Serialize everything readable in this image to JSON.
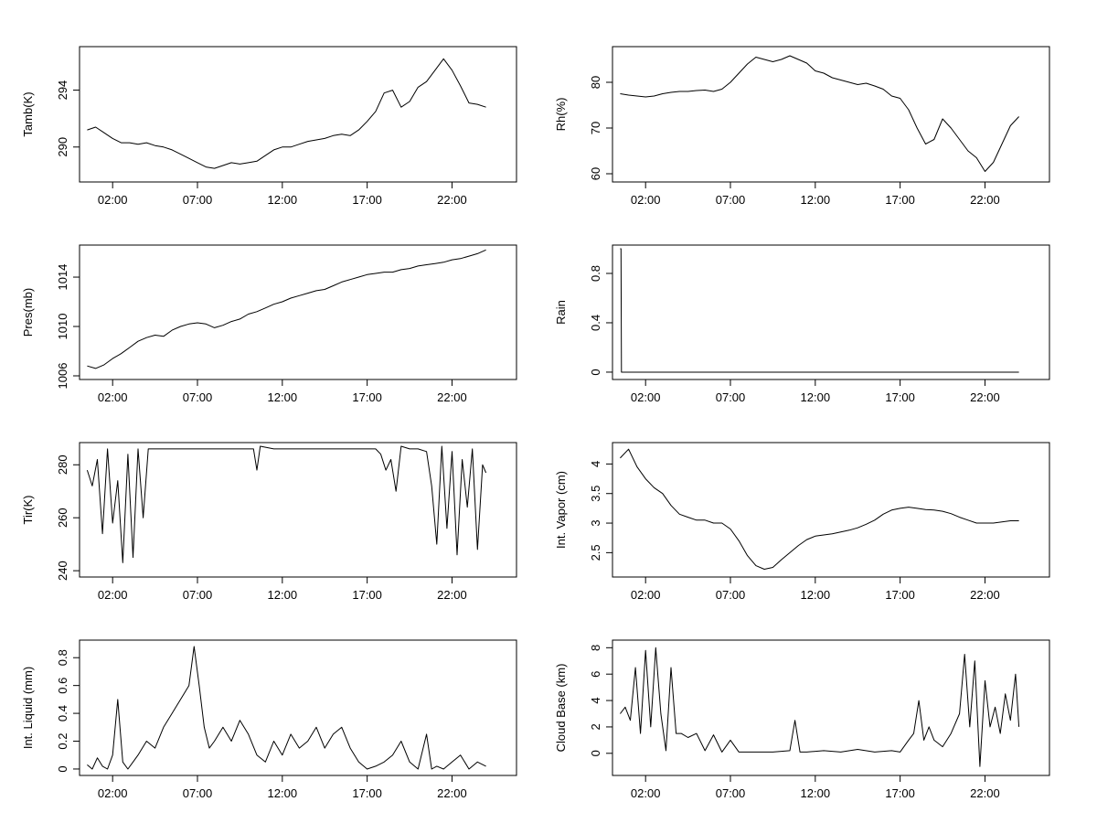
{
  "chart_data": [
    {
      "type": "line",
      "ylabel": "Tamb(K)",
      "ylim": [
        287.8,
        296.8
      ],
      "y_ticks": [
        290,
        294
      ],
      "x_ticks": [
        "02:00",
        "07:00",
        "12:00",
        "17:00",
        "22:00"
      ],
      "series": [
        {
          "x": [
            0,
            0.5,
            1,
            1.5,
            2,
            2.5,
            3,
            3.5,
            4,
            4.5,
            5,
            5.5,
            6,
            6.5,
            7,
            7.5,
            8,
            8.5,
            9,
            9.5,
            10,
            10.5,
            11,
            11.5,
            12,
            12.5,
            13,
            13.5,
            14,
            14.5,
            15,
            15.5,
            16,
            16.5,
            17,
            17.5,
            18,
            18.5,
            19,
            19.5,
            20,
            20.5,
            21,
            21.5,
            22,
            22.5,
            23,
            23.5
          ],
          "y": [
            291.2,
            291.4,
            291.0,
            290.6,
            290.3,
            290.3,
            290.2,
            290.3,
            290.1,
            290.0,
            289.8,
            289.5,
            289.2,
            288.9,
            288.6,
            288.5,
            288.7,
            288.9,
            288.8,
            288.9,
            289.0,
            289.4,
            289.8,
            290.0,
            290.0,
            290.2,
            290.4,
            290.5,
            290.6,
            290.8,
            290.9,
            290.8,
            291.2,
            291.8,
            292.5,
            293.8,
            294.0,
            292.8,
            293.2,
            294.2,
            294.6,
            295.4,
            296.2,
            295.4,
            294.3,
            293.1,
            293.0,
            292.8
          ]
        }
      ]
    },
    {
      "type": "line",
      "ylabel": "Rh(%)",
      "ylim": [
        59,
        87
      ],
      "y_ticks": [
        60,
        70,
        80
      ],
      "x_ticks": [
        "02:00",
        "07:00",
        "12:00",
        "17:00",
        "22:00"
      ],
      "series": [
        {
          "x": [
            0,
            0.5,
            1,
            1.5,
            2,
            2.5,
            3,
            3.5,
            4,
            4.5,
            5,
            5.5,
            6,
            6.5,
            7,
            7.5,
            8,
            8.5,
            9,
            9.5,
            10,
            10.5,
            11,
            11.5,
            12,
            12.5,
            13,
            13.5,
            14,
            14.5,
            15,
            15.5,
            16,
            16.5,
            17,
            17.5,
            18,
            18.5,
            19,
            19.5,
            20,
            20.5,
            21,
            21.5,
            22,
            22.5,
            23,
            23.5
          ],
          "y": [
            77.5,
            77.2,
            77.0,
            76.8,
            77.0,
            77.5,
            77.8,
            78.0,
            78.0,
            78.2,
            78.3,
            78.0,
            78.5,
            80.0,
            82.0,
            84.0,
            85.5,
            85.0,
            84.5,
            85.0,
            85.8,
            85.0,
            84.2,
            82.5,
            82.0,
            81.0,
            80.5,
            80.0,
            79.5,
            79.8,
            79.2,
            78.5,
            77.0,
            76.5,
            74.0,
            70.0,
            66.5,
            67.5,
            72.0,
            70.0,
            67.5,
            65.0,
            63.5,
            60.5,
            62.5,
            66.5,
            70.5,
            72.5
          ]
        }
      ]
    },
    {
      "type": "line",
      "ylabel": "Pres(mb)",
      "ylim": [
        1006,
        1016.3
      ],
      "y_ticks": [
        1006,
        1010,
        1014
      ],
      "x_ticks": [
        "02:00",
        "07:00",
        "12:00",
        "17:00",
        "22:00"
      ],
      "series": [
        {
          "x": [
            0,
            0.5,
            1,
            1.5,
            2,
            2.5,
            3,
            3.5,
            4,
            4.5,
            5,
            5.5,
            6,
            6.5,
            7,
            7.5,
            8,
            8.5,
            9,
            9.5,
            10,
            10.5,
            11,
            11.5,
            12,
            12.5,
            13,
            13.5,
            14,
            14.5,
            15,
            15.5,
            16,
            16.5,
            17,
            17.5,
            18,
            18.5,
            19,
            19.5,
            20,
            20.5,
            21,
            21.5,
            22,
            22.5,
            23,
            23.5
          ],
          "y": [
            1006.8,
            1006.6,
            1006.9,
            1007.4,
            1007.8,
            1008.3,
            1008.8,
            1009.1,
            1009.3,
            1009.2,
            1009.7,
            1010.0,
            1010.2,
            1010.3,
            1010.2,
            1009.9,
            1010.1,
            1010.4,
            1010.6,
            1011.0,
            1011.2,
            1011.5,
            1011.8,
            1012.0,
            1012.3,
            1012.5,
            1012.7,
            1012.9,
            1013.0,
            1013.3,
            1013.6,
            1013.8,
            1014.0,
            1014.2,
            1014.3,
            1014.4,
            1014.4,
            1014.6,
            1014.7,
            1014.9,
            1015.0,
            1015.1,
            1015.2,
            1015.4,
            1015.5,
            1015.7,
            1015.9,
            1016.2
          ]
        }
      ]
    },
    {
      "type": "line",
      "ylabel": "Rain",
      "ylim": [
        -0.03,
        1.0
      ],
      "y_ticks": [
        0.0,
        0.4,
        0.8
      ],
      "x_ticks": [
        "02:00",
        "07:00",
        "12:00",
        "17:00",
        "22:00"
      ],
      "series": [
        {
          "x": [
            0,
            0.05,
            0.08,
            23.5
          ],
          "y": [
            1.0,
            1.0,
            0.0,
            0.0
          ]
        }
      ]
    },
    {
      "type": "line",
      "ylabel": "Tir(K)",
      "ylim": [
        239,
        287
      ],
      "y_ticks": [
        240,
        260,
        280
      ],
      "x_ticks": [
        "02:00",
        "07:00",
        "12:00",
        "17:00",
        "22:00"
      ],
      "series": [
        {
          "x": [
            0,
            0.3,
            0.6,
            0.9,
            1.2,
            1.5,
            1.8,
            2.1,
            2.4,
            2.7,
            3.0,
            3.3,
            3.6,
            4,
            5,
            6,
            7,
            8,
            9,
            9.8,
            10,
            10.2,
            11,
            12,
            13,
            14,
            15,
            16,
            17,
            17.3,
            17.6,
            17.9,
            18.2,
            18.5,
            19,
            19.5,
            20,
            20.3,
            20.6,
            20.9,
            21.2,
            21.5,
            21.8,
            22.1,
            22.4,
            22.7,
            23.0,
            23.3,
            23.5
          ],
          "y": [
            278,
            272,
            282,
            254,
            286,
            258,
            274,
            243,
            284,
            245,
            286,
            260,
            286,
            286,
            286,
            286,
            286,
            286,
            286,
            286,
            278,
            287,
            286,
            286,
            286,
            286,
            286,
            286,
            286,
            284,
            278,
            282,
            270,
            287,
            286,
            286,
            285,
            272,
            250,
            287,
            256,
            285,
            246,
            282,
            264,
            286,
            248,
            280,
            277
          ]
        }
      ]
    },
    {
      "type": "line",
      "ylabel": "Int. Vapor (cm)",
      "ylim": [
        2.15,
        4.3
      ],
      "y_ticks": [
        2.5,
        3.0,
        3.5,
        4.0
      ],
      "x_ticks": [
        "02:00",
        "07:00",
        "12:00",
        "17:00",
        "22:00"
      ],
      "series": [
        {
          "x": [
            0,
            0.5,
            1,
            1.5,
            2,
            2.5,
            3,
            3.5,
            4,
            4.5,
            5,
            5.5,
            6,
            6.5,
            7,
            7.5,
            8,
            8.5,
            9,
            9.5,
            10,
            10.5,
            11,
            11.5,
            12,
            12.5,
            13,
            13.5,
            14,
            14.5,
            15,
            15.5,
            16,
            16.5,
            17,
            17.5,
            18,
            18.5,
            19,
            19.5,
            20,
            20.5,
            21,
            21.5,
            22,
            22.5,
            23,
            23.5
          ],
          "y": [
            4.1,
            4.25,
            3.95,
            3.75,
            3.6,
            3.5,
            3.3,
            3.15,
            3.1,
            3.05,
            3.05,
            3.0,
            3.0,
            2.9,
            2.7,
            2.45,
            2.28,
            2.22,
            2.25,
            2.38,
            2.5,
            2.62,
            2.72,
            2.78,
            2.8,
            2.82,
            2.85,
            2.88,
            2.92,
            2.98,
            3.05,
            3.15,
            3.22,
            3.25,
            3.27,
            3.25,
            3.23,
            3.22,
            3.2,
            3.16,
            3.1,
            3.05,
            3.0,
            3.0,
            3.0,
            3.02,
            3.04,
            3.04
          ]
        }
      ]
    },
    {
      "type": "line",
      "ylabel": "Int. Liquid (mm)",
      "ylim": [
        -0.02,
        0.9
      ],
      "y_ticks": [
        0.0,
        0.2,
        0.4,
        0.6,
        0.8
      ],
      "x_ticks": [
        "02:00",
        "07:00",
        "12:00",
        "17:00",
        "22:00"
      ],
      "series": [
        {
          "x": [
            0,
            0.3,
            0.6,
            0.9,
            1.2,
            1.5,
            1.8,
            2.1,
            2.4,
            2.7,
            3.0,
            3.5,
            4,
            4.5,
            5,
            5.5,
            6,
            6.3,
            6.6,
            6.9,
            7.2,
            7.5,
            8,
            8.5,
            9,
            9.5,
            10,
            10.5,
            11,
            11.5,
            12,
            12.5,
            13,
            13.5,
            14,
            14.5,
            15,
            15.5,
            16,
            16.5,
            17,
            17.5,
            18,
            18.5,
            19,
            19.5,
            20,
            20.3,
            20.6,
            21,
            21.5,
            22,
            22.5,
            23,
            23.5
          ],
          "y": [
            0.03,
            0.0,
            0.08,
            0.02,
            0.0,
            0.1,
            0.5,
            0.05,
            0.0,
            0.05,
            0.1,
            0.2,
            0.15,
            0.3,
            0.4,
            0.5,
            0.6,
            0.88,
            0.6,
            0.3,
            0.15,
            0.2,
            0.3,
            0.2,
            0.35,
            0.25,
            0.1,
            0.05,
            0.2,
            0.1,
            0.25,
            0.15,
            0.2,
            0.3,
            0.15,
            0.25,
            0.3,
            0.15,
            0.05,
            0.0,
            0.02,
            0.05,
            0.1,
            0.2,
            0.05,
            0.0,
            0.25,
            0.0,
            0.02,
            0.0,
            0.05,
            0.1,
            0.0,
            0.05,
            0.02
          ]
        }
      ]
    },
    {
      "type": "line",
      "ylabel": "Cloud Base (km)",
      "ylim": [
        -1.4,
        8.3
      ],
      "y_ticks": [
        0,
        2,
        4,
        6,
        8
      ],
      "x_ticks": [
        "02:00",
        "07:00",
        "12:00",
        "17:00",
        "22:00"
      ],
      "series": [
        {
          "x": [
            0,
            0.3,
            0.6,
            0.9,
            1.2,
            1.5,
            1.8,
            2.1,
            2.4,
            2.7,
            3.0,
            3.3,
            3.6,
            4,
            4.5,
            5,
            5.5,
            6,
            6.5,
            7,
            7.5,
            8,
            9,
            10,
            10.3,
            10.6,
            11,
            12,
            13,
            14,
            15,
            16,
            16.5,
            17,
            17.3,
            17.6,
            17.9,
            18.2,
            18.5,
            19,
            19.5,
            20,
            20.3,
            20.6,
            20.9,
            21.2,
            21.5,
            21.8,
            22.1,
            22.4,
            22.7,
            23.0,
            23.3,
            23.5
          ],
          "y": [
            3.0,
            3.5,
            2.5,
            6.5,
            1.5,
            7.8,
            2.0,
            8.0,
            3.0,
            0.2,
            6.5,
            1.5,
            1.5,
            1.2,
            1.5,
            0.2,
            1.4,
            0.1,
            1.0,
            0.1,
            0.1,
            0.1,
            0.1,
            0.2,
            2.5,
            0.1,
            0.1,
            0.2,
            0.1,
            0.3,
            0.1,
            0.2,
            0.1,
            1.0,
            1.5,
            4.0,
            1.0,
            2.0,
            1.0,
            0.5,
            1.5,
            3.0,
            7.5,
            2.0,
            7.0,
            -1.0,
            5.5,
            2.0,
            3.5,
            1.5,
            4.5,
            2.5,
            6.0,
            2.0
          ]
        }
      ]
    }
  ]
}
